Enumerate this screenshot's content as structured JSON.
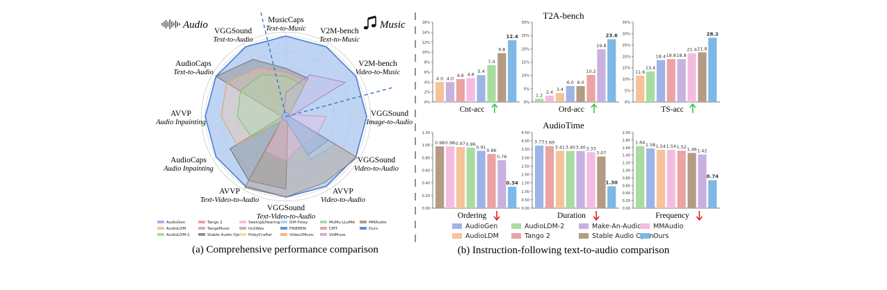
{
  "panel_a": {
    "audio_label": "Audio",
    "music_label": "Music",
    "caption": "(a) Comprehensive performance comparison",
    "axes": [
      {
        "line1": "MusicCaps",
        "line2": "Text-to-Music"
      },
      {
        "line1": "V2M-bench",
        "line2": "Text-to-Music"
      },
      {
        "line1": "V2M-bench",
        "line2": "Video-to-Music"
      },
      {
        "line1": "VGGSound",
        "line2": "Image-to-Audio"
      },
      {
        "line1": "VGGSound",
        "line2": "Video-to-Audio"
      },
      {
        "line1": "AVVP",
        "line2": "Video-to-Audio"
      },
      {
        "line1": "VGGSound",
        "line2": "Text-Video-to-Audio"
      },
      {
        "line1": "AVVP",
        "line2": "Text-Video-to-Audio"
      },
      {
        "line1": "AudioCaps",
        "line2": "Audio Inpainting"
      },
      {
        "line1": "AVVP",
        "line2": "Audio Inpainting"
      },
      {
        "line1": "AudioCaps",
        "line2": "Text-to-Audio"
      },
      {
        "line1": "VGGSound",
        "line2": "Text-to-Audio"
      }
    ],
    "legend": [
      {
        "name": "AudioGen",
        "color": "#9fb4e6"
      },
      {
        "name": "AudioLDM",
        "color": "#f6c29a"
      },
      {
        "name": "AudioLDM-2",
        "color": "#a8dca0"
      },
      {
        "name": "Tango 2",
        "color": "#eba3a3"
      },
      {
        "name": "TangoMusic",
        "color": "#d9a8d0"
      },
      {
        "name": "Stable Audio Open",
        "color": "#8f8f8f"
      },
      {
        "name": "Seeing&Hearing",
        "color": "#f3bde0"
      },
      {
        "name": "Im2Wav",
        "color": "#b5b5b5"
      },
      {
        "name": "FoleyCrafter",
        "color": "#f4dca8"
      },
      {
        "name": "Diff-Foley",
        "color": "#b7d3f0"
      },
      {
        "name": "FRIEREN",
        "color": "#6d8fd6"
      },
      {
        "name": "Video2Music",
        "color": "#f3b38c"
      },
      {
        "name": "MuMu-LLaMA",
        "color": "#a9d8b0"
      },
      {
        "name": "CMT",
        "color": "#e5a0a0"
      },
      {
        "name": "VidMuse",
        "color": "#c8b1e0"
      },
      {
        "name": "MMAudio",
        "color": "#b49b84"
      },
      {
        "name": "Ours",
        "color": "#5b8fd8"
      }
    ],
    "radar_series": [
      {
        "name": "Ours",
        "fill": "#a9c6ee",
        "stroke": "#4a7ed0",
        "opacity": 0.75,
        "values": [
          1,
          1,
          1,
          1,
          1,
          1,
          1,
          1,
          1,
          1,
          1,
          1
        ]
      },
      {
        "name": "Stable Audio Open",
        "fill": "#8a8a8a",
        "stroke": "#666666",
        "opacity": 0.45,
        "values": [
          0.6,
          0.55,
          0.05,
          0.05,
          0.05,
          0.05,
          0.9,
          0.92,
          0.8,
          0.05,
          1.0,
          0.82
        ]
      },
      {
        "name": "MMAudio",
        "fill": "#b49b84",
        "stroke": "#8f7660",
        "opacity": 0.4,
        "values": [
          0.05,
          0.05,
          0.05,
          0.05,
          1.02,
          0.95,
          1.0,
          1.02,
          0.05,
          0.05,
          0.05,
          0.05
        ]
      },
      {
        "name": "AudioLDM",
        "fill": "#f6c29a",
        "stroke": "#e59e6a",
        "opacity": 0.35,
        "values": [
          0.55,
          0.5,
          0.05,
          0.05,
          0.05,
          0.05,
          0.05,
          0.05,
          0.7,
          0.8,
          0.85,
          0.7
        ]
      },
      {
        "name": "AudioLDM-2",
        "fill": "#a8dca0",
        "stroke": "#6fbf66",
        "opacity": 0.35,
        "values": [
          0.5,
          0.45,
          0.05,
          0.05,
          0.05,
          0.05,
          0.05,
          0.05,
          0.5,
          0.6,
          0.65,
          0.6
        ]
      },
      {
        "name": "Seeing&Hearing",
        "fill": "#f3bde0",
        "stroke": "#d98fc0",
        "opacity": 0.35,
        "values": [
          0.05,
          0.05,
          0.05,
          0.5,
          0.45,
          0.4,
          0.55,
          0.5,
          0.05,
          0.05,
          0.05,
          0.05
        ]
      },
      {
        "name": "VidMuse",
        "fill": "#c8b1e0",
        "stroke": "#9c7fc4",
        "opacity": 0.35,
        "values": [
          0.3,
          0.6,
          0.85,
          0.05,
          0.05,
          0.05,
          0.05,
          0.05,
          0.05,
          0.05,
          0.05,
          0.05
        ]
      },
      {
        "name": "FRIEREN",
        "fill": "#6d8fd6",
        "stroke": "#4a6fc0",
        "opacity": 0.35,
        "values": [
          0.05,
          0.05,
          0.05,
          0.05,
          0.6,
          0.55,
          0.05,
          0.05,
          0.05,
          0.05,
          0.05,
          0.05
        ]
      },
      {
        "name": "Diff-Foley",
        "fill": "#b7d3f0",
        "stroke": "#7fb0e3",
        "opacity": 0.4,
        "values": [
          0.05,
          0.05,
          0.05,
          0.05,
          0.7,
          0.62,
          0.05,
          0.05,
          0.05,
          0.05,
          0.05,
          0.05
        ]
      }
    ]
  },
  "panel_b": {
    "caption": "(b) Instruction-following text-to-audio comparison",
    "section_top": "T2A-bench",
    "section_bottom": "AudioTime",
    "legend": [
      {
        "name": "AudioGen",
        "color": "#9fb4e6"
      },
      {
        "name": "AudioLDM",
        "color": "#f6c29a"
      },
      {
        "name": "AudioLDM-2",
        "color": "#a8dca0"
      },
      {
        "name": "Tango 2",
        "color": "#eba3a3"
      },
      {
        "name": "Make-An-Audio2",
        "color": "#c8b1e0"
      },
      {
        "name": "Stable Audio Open",
        "color": "#b49b84"
      },
      {
        "name": "MMAudio",
        "color": "#f3bde0"
      },
      {
        "name": "Ours",
        "color": "#7db8e6"
      }
    ]
  },
  "chart_data": [
    {
      "type": "bar",
      "group": "T2A-bench",
      "xlabel": "Cnt-acc",
      "arrow": "up",
      "ylim": [
        0,
        16
      ],
      "yticks": [
        0,
        2,
        4,
        6,
        8,
        10,
        12,
        14,
        16
      ],
      "ytick_labels": [
        "0%",
        "2%",
        "4%",
        "6%",
        "8%",
        "10%",
        "12%",
        "14%",
        "16%"
      ],
      "categories": [
        "AudioLDM",
        "Make-An-Audio2",
        "Tango 2",
        "MMAudio",
        "AudioGen",
        "AudioLDM-2",
        "Stable Audio Open",
        "Ours"
      ],
      "colors": [
        "#f6c29a",
        "#c8b1e0",
        "#eba3a3",
        "#f3bde0",
        "#9fb4e6",
        "#a8dca0",
        "#b49b84",
        "#7db8e6"
      ],
      "values": [
        4.0,
        4.0,
        4.6,
        4.8,
        5.4,
        7.4,
        9.8,
        12.4
      ],
      "labels": [
        "4.0",
        "4.0",
        "4.6",
        "4.8",
        "5.4",
        "7.4",
        "9.8",
        "12.4"
      ]
    },
    {
      "type": "bar",
      "group": "T2A-bench",
      "xlabel": "Ord-acc",
      "arrow": "up",
      "ylim": [
        0,
        30
      ],
      "yticks": [
        0,
        5,
        10,
        15,
        20,
        25,
        30
      ],
      "ytick_labels": [
        "0%",
        "5%",
        "10%",
        "15%",
        "20%",
        "25%",
        "30%"
      ],
      "categories": [
        "AudioLDM-2",
        "MMAudio",
        "AudioLDM",
        "AudioGen",
        "Stable Audio Open",
        "Tango 2",
        "Make-An-Audio2",
        "Ours"
      ],
      "colors": [
        "#a8dca0",
        "#f3bde0",
        "#f6c29a",
        "#9fb4e6",
        "#b49b84",
        "#eba3a3",
        "#c8b1e0",
        "#7db8e6"
      ],
      "values": [
        1.2,
        2.4,
        3.4,
        6.0,
        6.0,
        10.2,
        19.8,
        23.6
      ],
      "labels": [
        "1.2",
        "2.4",
        "3.4",
        "6.0",
        "6.0",
        "10.2",
        "19.8",
        "23.6"
      ]
    },
    {
      "type": "bar",
      "group": "T2A-bench",
      "xlabel": "TS-acc",
      "arrow": "up",
      "ylim": [
        0,
        35
      ],
      "yticks": [
        0,
        5,
        10,
        15,
        20,
        25,
        30,
        35
      ],
      "ytick_labels": [
        "0%",
        "5%",
        "10%",
        "15%",
        "20%",
        "25%",
        "30%",
        "35%"
      ],
      "categories": [
        "AudioLDM",
        "AudioLDM-2",
        "AudioGen",
        "Tango 2",
        "Make-An-Audio2",
        "MMAudio",
        "Stable Audio Open",
        "Ours"
      ],
      "colors": [
        "#f6c29a",
        "#a8dca0",
        "#9fb4e6",
        "#eba3a3",
        "#c8b1e0",
        "#f3bde0",
        "#b49b84",
        "#7db8e6"
      ],
      "values": [
        11.6,
        13.4,
        18.4,
        18.8,
        18.8,
        21.4,
        21.8,
        28.2
      ],
      "labels": [
        "11.6",
        "13.4",
        "18.4",
        "18.8",
        "18.8",
        "21.4",
        "21.8",
        "28.2"
      ]
    },
    {
      "type": "bar",
      "group": "AudioTime",
      "xlabel": "Ordering",
      "arrow": "down",
      "ylim": [
        0,
        1.2
      ],
      "yticks": [
        0,
        0.2,
        0.4,
        0.6,
        0.8,
        1.0,
        1.2
      ],
      "ytick_labels": [
        "0.00",
        "0.20",
        "0.40",
        "0.60",
        "0.80",
        "1.00",
        "1.20"
      ],
      "categories": [
        "Stable Audio Open",
        "MMAudio",
        "AudioLDM",
        "AudioLDM-2",
        "AudioGen",
        "Tango 2",
        "Make-An-Audio2",
        "Ours"
      ],
      "colors": [
        "#b49b84",
        "#f3bde0",
        "#f6c29a",
        "#a8dca0",
        "#9fb4e6",
        "#eba3a3",
        "#c8b1e0",
        "#7db8e6"
      ],
      "values": [
        0.98,
        0.98,
        0.97,
        0.96,
        0.91,
        0.86,
        0.76,
        0.34
      ],
      "labels": [
        "0.98",
        "0.98",
        "0.97",
        "0.96",
        "0.91",
        "0.86",
        "0.76",
        "0.34"
      ]
    },
    {
      "type": "bar",
      "group": "AudioTime",
      "xlabel": "Duration",
      "arrow": "down",
      "ylim": [
        0,
        4.5
      ],
      "yticks": [
        0,
        0.5,
        1.0,
        1.5,
        2.0,
        2.5,
        3.0,
        3.5,
        4.0,
        4.5
      ],
      "ytick_labels": [
        "0.00",
        "0.50",
        "1.00",
        "1.50",
        "2.00",
        "2.50",
        "3.00",
        "3.50",
        "4.00",
        "4.50"
      ],
      "categories": [
        "AudioGen",
        "Tango 2",
        "AudioLDM",
        "AudioLDM-2",
        "Make-An-Audio2",
        "MMAudio",
        "Stable Audio Open",
        "Ours"
      ],
      "colors": [
        "#9fb4e6",
        "#eba3a3",
        "#f6c29a",
        "#a8dca0",
        "#c8b1e0",
        "#f3bde0",
        "#b49b84",
        "#7db8e6"
      ],
      "values": [
        3.73,
        3.69,
        3.41,
        3.4,
        3.4,
        3.33,
        3.07,
        1.3
      ],
      "labels": [
        "3.73",
        "3.69",
        "3.41",
        "3.40",
        "3.40",
        "3.33",
        "3.07",
        "1.30"
      ]
    },
    {
      "type": "bar",
      "group": "AudioTime",
      "xlabel": "Frequency",
      "arrow": "down",
      "ylim": [
        0,
        2.0
      ],
      "yticks": [
        0,
        0.2,
        0.4,
        0.6,
        0.8,
        1.0,
        1.2,
        1.4,
        1.6,
        1.8,
        2.0
      ],
      "ytick_labels": [
        "0.00",
        "0.20",
        "0.40",
        "0.60",
        "0.80",
        "1.00",
        "1.20",
        "1.40",
        "1.60",
        "1.80",
        "2.00"
      ],
      "categories": [
        "AudioLDM-2",
        "AudioGen",
        "AudioLDM",
        "MMAudio",
        "Tango 2",
        "Stable Audio Open",
        "Make-An-Audio2",
        "Ours"
      ],
      "colors": [
        "#a8dca0",
        "#9fb4e6",
        "#f6c29a",
        "#f3bde0",
        "#eba3a3",
        "#b49b84",
        "#c8b1e0",
        "#7db8e6"
      ],
      "values": [
        1.64,
        1.58,
        1.54,
        1.54,
        1.52,
        1.46,
        1.42,
        0.74
      ],
      "labels": [
        "1.64",
        "1.58",
        "1.54",
        "1.54",
        "1.52",
        "1.46",
        "1.42",
        "0.74"
      ]
    }
  ]
}
